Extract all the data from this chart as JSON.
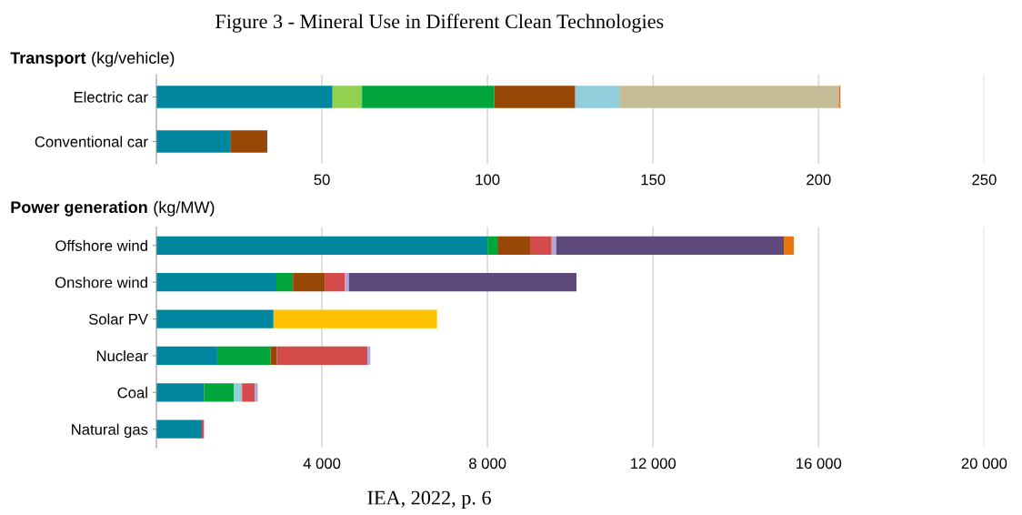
{
  "chart_data": [
    {
      "type": "bar",
      "orientation": "horizontal",
      "stacked": true,
      "title": "Transport",
      "subtitle": "(kg/vehicle)",
      "annotations": [
        "Figure 3 - Mineral Use in Different Clean Technologies"
      ],
      "categories": [
        "Electric car",
        "Conventional car"
      ],
      "series": [
        {
          "color": "#0087a0",
          "values": [
            53.2,
            22.3
          ]
        },
        {
          "color": "#92d050",
          "values": [
            8.9,
            null
          ]
        },
        {
          "color": "#00a63c",
          "values": [
            39.9,
            null
          ]
        },
        {
          "color": "#974706",
          "values": [
            24.5,
            11.2
          ]
        },
        {
          "color": "#92cddc",
          "values": [
            13.3,
            null
          ]
        },
        {
          "color": "#c4bd97",
          "values": [
            66.3,
            null
          ]
        },
        {
          "color": "#e87511",
          "values": [
            0.5,
            null
          ]
        }
      ],
      "xlim": [
        0,
        250
      ],
      "xticks": [
        50,
        100,
        150,
        200,
        250
      ],
      "grid": "x"
    },
    {
      "type": "bar",
      "orientation": "horizontal",
      "stacked": true,
      "title": "Power generation",
      "subtitle": "(kg/MW)",
      "annotations": [
        "IEA, 2022, p. 6"
      ],
      "categories": [
        "Offshore wind",
        "Onshore wind",
        "Solar PV",
        "Nuclear",
        "Coal",
        "Natural gas"
      ],
      "series": [
        {
          "color": "#0087a0",
          "values": [
            8000,
            2900,
            2830,
            1470,
            1150,
            1100
          ]
        },
        {
          "color": "#00a63c",
          "values": [
            240,
            400,
            null,
            1290,
            720,
            null
          ]
        },
        {
          "color": "#974706",
          "values": [
            790,
            780,
            null,
            150,
            null,
            null
          ]
        },
        {
          "color": "#92cddc",
          "values": [
            null,
            null,
            null,
            null,
            200,
            null
          ]
        },
        {
          "color": "#d44b4b",
          "values": [
            520,
            470,
            null,
            2190,
            310,
            50
          ]
        },
        {
          "color": "#b4a7d6",
          "values": [
            110,
            100,
            null,
            70,
            70,
            null
          ]
        },
        {
          "color": "#5e4a7a",
          "values": [
            5500,
            5500,
            null,
            null,
            null,
            null
          ]
        },
        {
          "color": "#ffc000",
          "values": [
            null,
            null,
            3950,
            null,
            null,
            null
          ]
        },
        {
          "color": "#e87511",
          "values": [
            240,
            null,
            null,
            null,
            null,
            null
          ]
        }
      ],
      "xlim": [
        0,
        20000
      ],
      "xticks": [
        {
          "value": 4000,
          "label": "4 000"
        },
        {
          "value": 8000,
          "label": "8 000"
        },
        {
          "value": 12000,
          "label": "12 000"
        },
        {
          "value": 16000,
          "label": "16 000"
        },
        {
          "value": 20000,
          "label": "20 000"
        }
      ],
      "grid": "x"
    }
  ]
}
